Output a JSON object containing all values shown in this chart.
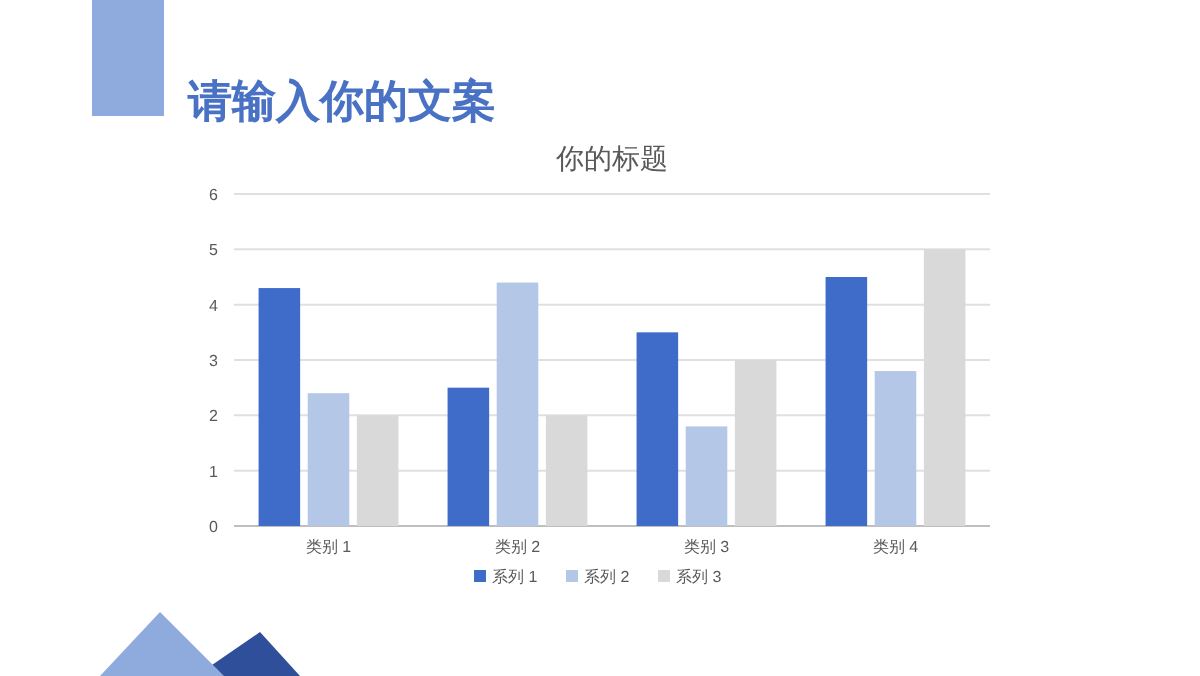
{
  "chart_data": {
    "type": "bar",
    "title": "你的标题",
    "annotations": [
      "请输入你的文案"
    ],
    "categories": [
      "类别 1",
      "类别 2",
      "类别 3",
      "类别 4"
    ],
    "series": [
      {
        "name": "系列 1",
        "color": "#3f6cc9",
        "values": [
          4.3,
          2.5,
          3.5,
          4.5
        ]
      },
      {
        "name": "系列 2",
        "color": "#b4c7e7",
        "values": [
          2.4,
          4.4,
          1.8,
          2.8
        ]
      },
      {
        "name": "系列 3",
        "color": "#d9d9d9",
        "values": [
          2,
          2,
          3,
          5
        ]
      }
    ],
    "ylim": [
      0,
      6
    ],
    "yticks": [
      0,
      1,
      2,
      3,
      4,
      5,
      6
    ],
    "grid": "y",
    "legend": "bottom"
  }
}
